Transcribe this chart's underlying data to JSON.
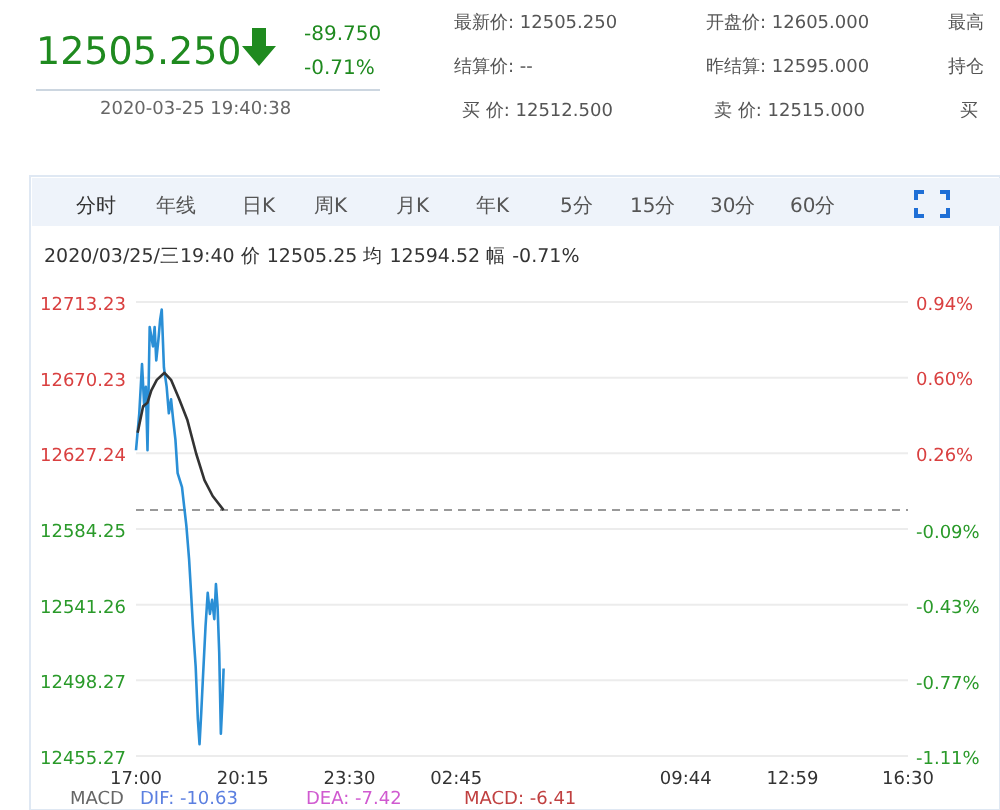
{
  "chart_data": {
    "type": "line",
    "x": [
      "2020-03-25T17:00",
      "2020-03-25T17:06",
      "2020-03-25T17:11",
      "2020-03-25T17:15",
      "2020-03-25T17:18",
      "2020-03-25T17:21",
      "2020-03-25T17:25",
      "2020-03-25T17:31",
      "2020-03-25T17:34",
      "2020-03-25T17:37",
      "2020-03-25T17:41",
      "2020-03-25T17:44",
      "2020-03-25T17:47",
      "2020-03-25T17:51",
      "2020-03-25T17:56",
      "2020-03-25T18:00",
      "2020-03-25T18:04",
      "2020-03-25T18:08",
      "2020-03-25T18:12",
      "2020-03-25T18:16",
      "2020-03-25T18:20",
      "2020-03-25T18:24",
      "2020-03-25T18:28",
      "2020-03-25T18:32",
      "2020-03-25T18:37",
      "2020-03-25T18:40",
      "2020-03-25T18:44",
      "2020-03-25T18:49",
      "2020-03-25T18:53",
      "2020-03-25T18:56",
      "2020-03-25T18:59",
      "2020-03-25T19:02",
      "2020-03-25T19:07",
      "2020-03-25T19:11",
      "2020-03-25T19:15",
      "2020-03-25T19:19",
      "2020-03-25T19:23",
      "2020-03-25T19:26",
      "2020-03-25T19:29",
      "2020-03-25T19:32",
      "2020-03-25T19:35",
      "2020-03-25T19:38",
      "2020-03-25T19:40"
    ],
    "series": [
      {
        "color": "#2a8fd6",
        "values": [
          12629,
          12650,
          12678,
          12654,
          12665,
          12629,
          12699,
          12688,
          12699,
          12680,
          12692,
          12703,
          12709,
          12676,
          12665,
          12650,
          12658,
          12646,
          12635,
          12616,
          12612,
          12608,
          12597,
          12586,
          12567,
          12551,
          12529,
          12506,
          12476,
          12462,
          12479,
          12498,
          12529,
          12548,
          12536,
          12544,
          12533,
          12553,
          12540,
          12514,
          12468,
          12487,
          12505
        ]
      },
      {
        "color": "#333333",
        "x": [
          "2020-03-25T17:03",
          "2020-03-25T17:13",
          "2020-03-25T17:21",
          "2020-03-25T17:28",
          "2020-03-25T17:38",
          "2020-03-25T17:52",
          "2020-03-25T18:04",
          "2020-03-25T18:19",
          "2020-03-25T18:34",
          "2020-03-25T18:50",
          "2020-03-25T19:05",
          "2020-03-25T19:20",
          "2020-03-25T19:40"
        ],
        "values": [
          12639,
          12654,
          12656,
          12663,
          12669,
          12673,
          12669,
          12658,
          12646,
          12627,
          12612,
          12603,
          12595
        ]
      }
    ],
    "xlim": [
      "2020-03-25T17:00",
      "2020-03-26T16:30"
    ],
    "xticks": [
      {
        "value": "2020-03-25T17:00",
        "label": "17:00"
      },
      {
        "value": "2020-03-25T20:15",
        "label": "20:15"
      },
      {
        "value": "2020-03-25T23:30",
        "label": "23:30"
      },
      {
        "value": "2020-03-26T02:45",
        "label": "02:45"
      },
      {
        "value": "2020-03-26T09:44",
        "label": "09:44"
      },
      {
        "value": "2020-03-26T12:59",
        "label": "12:59"
      },
      {
        "value": "2020-03-26T16:30",
        "label": "16:30"
      }
    ],
    "ylim": [
      12455.27,
      12713.23
    ],
    "yticks": [
      12455.27,
      12498.27,
      12541.26,
      12584.25,
      12627.24,
      12670.23,
      12713.23
    ],
    "y2lim": [
      -1.11,
      0.94
    ],
    "y2ticks": [
      {
        "value": -1.11,
        "label": "-1.11%"
      },
      {
        "value": -0.77,
        "label": "-0.77%"
      },
      {
        "value": -0.43,
        "label": "-0.43%"
      },
      {
        "value": -0.09,
        "label": "-0.09%"
      },
      {
        "value": 0.26,
        "label": "0.26%"
      },
      {
        "value": 0.6,
        "label": "0.60%"
      },
      {
        "value": 0.94,
        "label": "0.94%"
      }
    ],
    "ref_lines": [
      {
        "axis": "y",
        "value": 12595,
        "color": "#999999",
        "line_style": "dashed"
      }
    ],
    "grid": "y",
    "line_style": "solid",
    "annotations": [
      "12505.250",
      "-89.750",
      "-0.71%",
      "2020-03-25 19:40:38",
      "最新价: 12505.250",
      "开盘价: 12605.000",
      "最高",
      "结算价: --",
      "昨结算: 12595.000",
      "持仓",
      "买  价: 12512.500",
      "卖  价: 12515.000",
      "买",
      "分时",
      "年线",
      "日K",
      "周K",
      "月K",
      "年K",
      "5分",
      "15分",
      "30分",
      "60分",
      "2020/03/25/三19:40 价 12505.25 均 12594.52 幅 -0.71%",
      "MACD",
      "DIF: -10.63",
      "DEA: -7.42",
      "MACD: -6.41"
    ]
  }
}
